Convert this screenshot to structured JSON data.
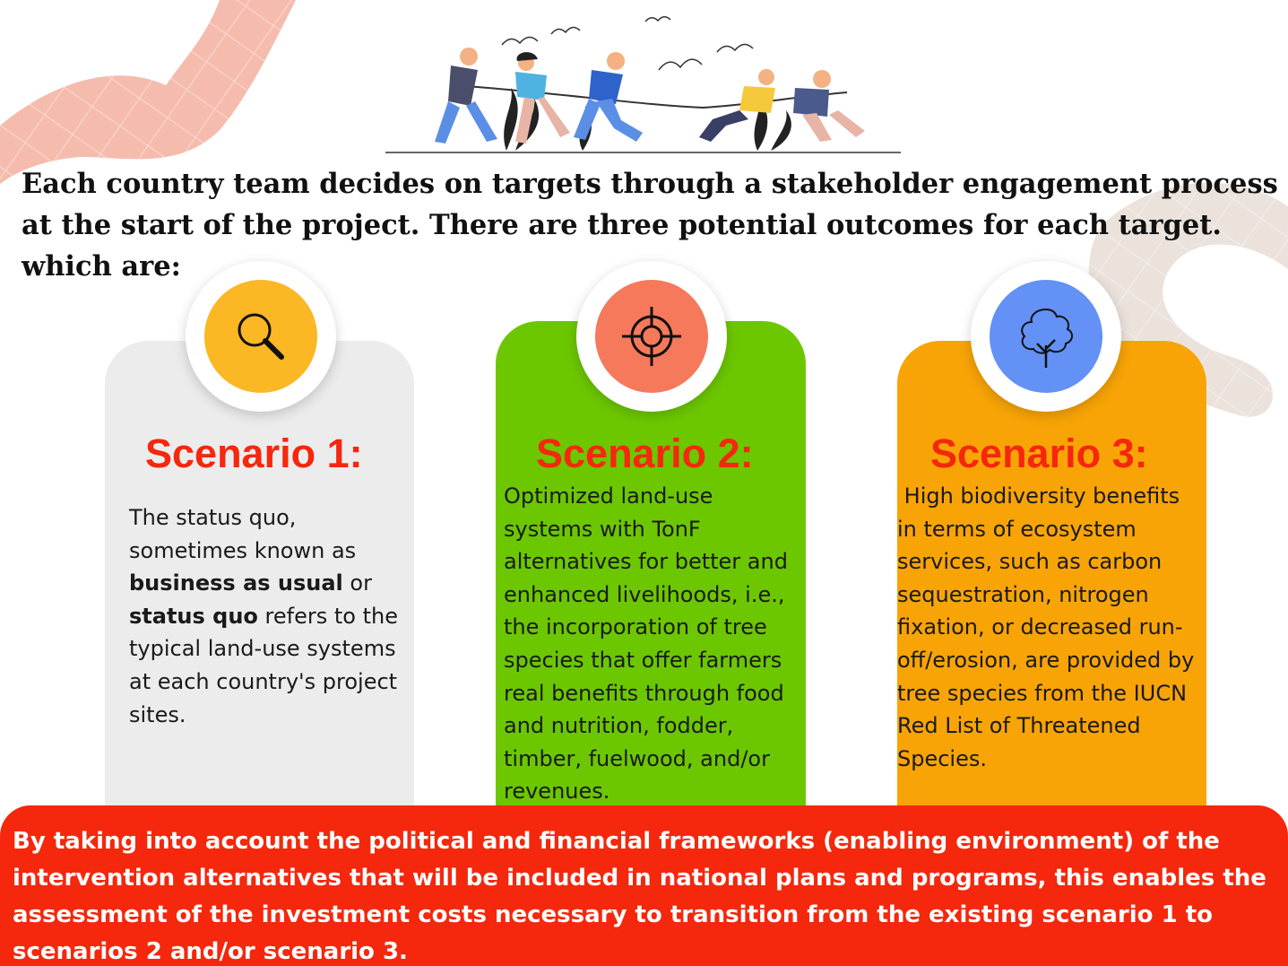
{
  "intro": {
    "text": "Each country team decides on targets through a stakeholder engagement process at the start of the project. There are three potential outcomes for each target. which are:"
  },
  "scenarios": [
    {
      "title": "Scenario 1:",
      "icon": "magnifier-icon",
      "icon_color": "#fbb724",
      "card_color": "#ececec",
      "text_a": "The status quo, sometimes known as ",
      "bold_a": "business as usual",
      "text_b": " or ",
      "bold_b": "status quo",
      "text_c": " refers to the typical land-use systems at each country's project sites."
    },
    {
      "title": "Scenario 2:",
      "icon": "target-crosshair-icon",
      "icon_color": "#f6795c",
      "card_color": "#6cc700",
      "text": "Optimized land-use systems with TonF alternatives for better and enhanced livelihoods, i.e., the incorporation of tree species that offer farmers real benefits through food and nutrition, fodder, timber, fuelwood, and/or revenues."
    },
    {
      "title": "Scenario 3:",
      "icon": "tree-icon",
      "icon_color": "#6491f5",
      "card_color": "#f8a406",
      "text": " High biodiversity benefits in terms of ecosystem services, such as carbon sequestration, nitrogen fixation, or decreased run-off/erosion, are provided by tree species from the IUCN Red List of Threatened Species."
    }
  ],
  "banner": {
    "text": "By taking into account the political and financial frameworks (enabling environment) of the intervention alternatives that will be included in national plans and programs, this enables the assessment of the investment costs necessary to transition from the existing scenario 1 to scenarios 2 and/or scenario 3.",
    "color": "#f5270d"
  }
}
